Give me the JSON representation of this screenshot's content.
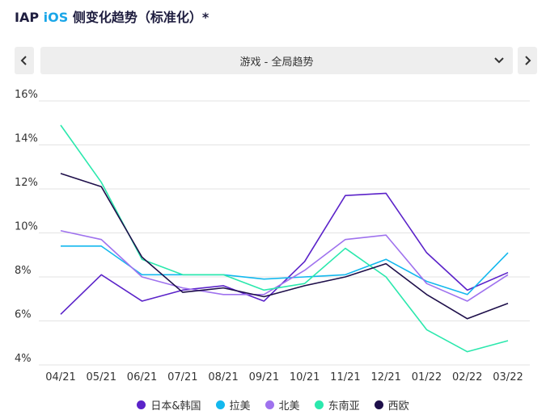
{
  "header": {
    "title_prefix": "IAP ",
    "title_ios": "iOS",
    "title_suffix": " 侧变化趋势（标准化）*"
  },
  "selector": {
    "value": "游戏 - 全局趋势",
    "prev_icon": "chevron-left-icon",
    "next_icon": "chevron-right-icon",
    "dropdown_icon": "chevron-down-icon"
  },
  "chart_data": {
    "type": "line",
    "categories": [
      "04/21",
      "05/21",
      "06/21",
      "07/21",
      "08/21",
      "09/21",
      "10/21",
      "11/21",
      "12/21",
      "01/22",
      "02/22",
      "03/22"
    ],
    "y_ticks": [
      "4%",
      "6%",
      "8%",
      "10%",
      "12%",
      "14%",
      "16%"
    ],
    "ylim": [
      4,
      16
    ],
    "grid": true,
    "legend_position": "bottom",
    "series": [
      {
        "name": "日本&韩国",
        "color": "#5b23c9",
        "values": [
          6.3,
          8.1,
          6.9,
          7.4,
          7.6,
          6.9,
          8.7,
          11.7,
          11.8,
          9.1,
          7.4,
          8.2
        ]
      },
      {
        "name": "拉美",
        "color": "#13b8ee",
        "values": [
          9.4,
          9.4,
          8.1,
          8.1,
          8.1,
          7.9,
          8.0,
          8.1,
          8.8,
          7.8,
          7.2,
          9.1
        ]
      },
      {
        "name": "北美",
        "color": "#9f72ee",
        "values": [
          10.1,
          9.7,
          8.0,
          7.5,
          7.2,
          7.2,
          8.3,
          9.7,
          9.9,
          7.7,
          6.9,
          8.1
        ]
      },
      {
        "name": "东南亚",
        "color": "#2be8ad",
        "values": [
          14.9,
          12.3,
          8.8,
          8.1,
          8.1,
          7.4,
          7.7,
          9.3,
          8.0,
          5.6,
          4.6,
          5.1
        ]
      },
      {
        "name": "西欧",
        "color": "#1e0f4a",
        "values": [
          12.7,
          12.1,
          8.9,
          7.3,
          7.5,
          7.1,
          7.6,
          8.0,
          8.6,
          7.2,
          6.1,
          6.8
        ]
      }
    ]
  }
}
